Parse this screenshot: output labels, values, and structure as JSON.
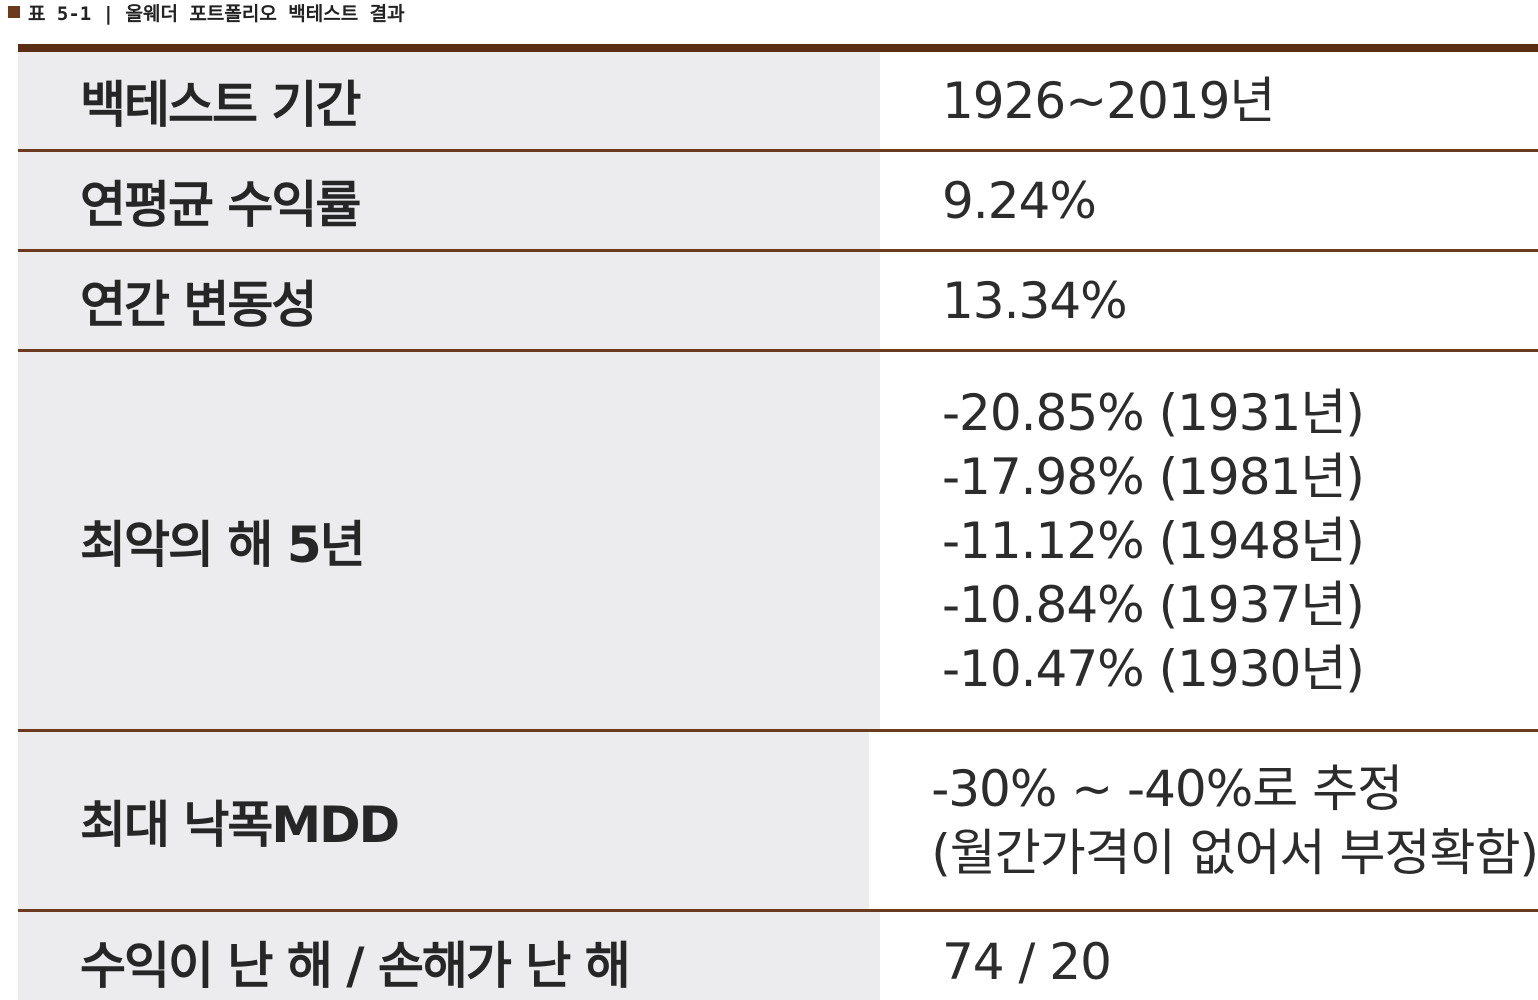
{
  "caption": "표 5-1 | 올웨더 포트폴리오 백테스트 결과",
  "colors": {
    "rule": "#6b3a1f",
    "label_bg": "#ececee",
    "marker": "#6b3a1f"
  },
  "rows": [
    {
      "label": "백테스트 기간",
      "values": [
        "1926~2019년"
      ]
    },
    {
      "label": "연평균 수익률",
      "values": [
        "9.24%"
      ]
    },
    {
      "label": "연간 변동성",
      "values": [
        "13.34%"
      ]
    },
    {
      "label": "최악의 해 5년",
      "values": [
        "-20.85% (1931년)",
        "-17.98% (1981년)",
        "-11.12% (1948년)",
        "-10.84% (1937년)",
        "-10.47% (1930년)"
      ]
    },
    {
      "label": "최대 낙폭MDD",
      "values": [
        "-30% ~ -40%로 추정",
        "(월간가격이 없어서 부정확함)"
      ]
    },
    {
      "label": "수익이 난 해 / 손해가 난 해",
      "values": [
        "74 / 20"
      ]
    }
  ]
}
